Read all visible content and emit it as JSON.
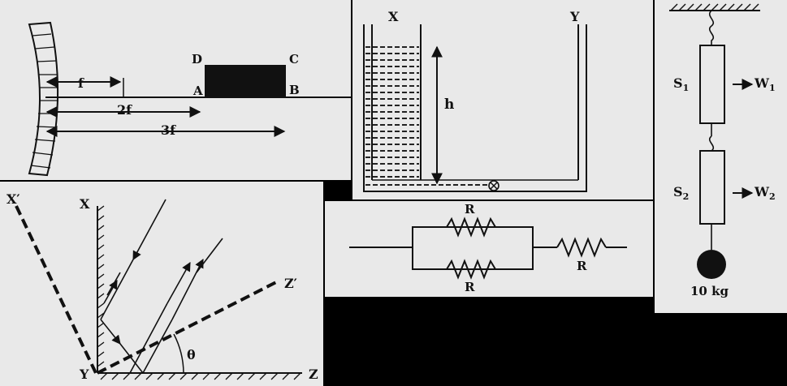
{
  "mirror_panel": {
    "D": "D",
    "C": "C",
    "A": "A",
    "B": "B",
    "f": "f",
    "two_f": "2f",
    "three_f": "3f"
  },
  "tank_panel": {
    "X": "X",
    "Y": "Y",
    "h": "h"
  },
  "spring_panel": {
    "S1": "S",
    "S1_sub": "1",
    "W1": "W",
    "W1_sub": "1",
    "S2": "S",
    "S2_sub": "2",
    "W2": "W",
    "W2_sub": "2",
    "mass": "10 kg"
  },
  "reflect_panel": {
    "X_prime": "X′",
    "X": "X",
    "Z_prime": "Z′",
    "theta": "θ",
    "Y": "Y",
    "Z": "Z"
  },
  "resistor_panel": {
    "R_top": "R",
    "R_bottom": "R",
    "R_series": "R"
  },
  "colors": {
    "background": "#000000",
    "panel": "#e9e9e9",
    "ink": "#111111"
  }
}
